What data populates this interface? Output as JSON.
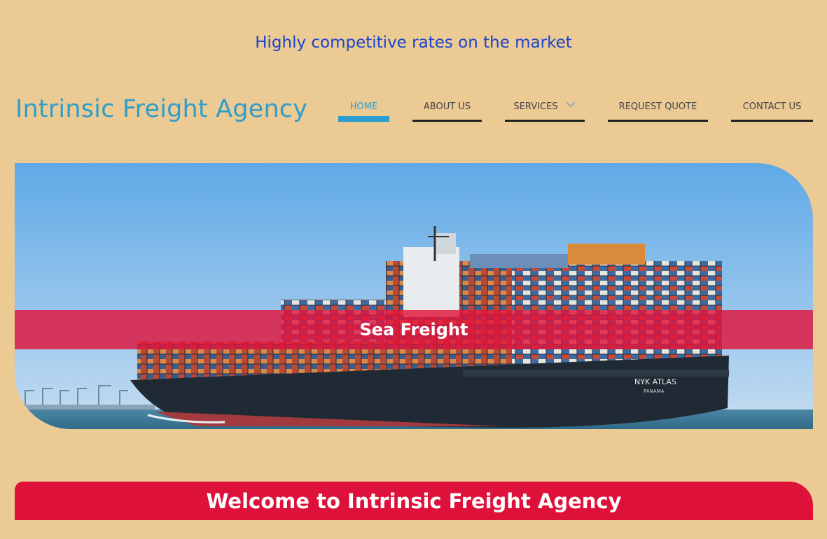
{
  "header": {
    "tagline": "Highly competitive rates on the market",
    "brand": "Intrinsic Freight Agency"
  },
  "nav": {
    "home": "HOME",
    "about": "ABOUT US",
    "services": "SERVICES",
    "quote": "REQUEST QUOTE",
    "contact": "CONTACT US"
  },
  "hero": {
    "caption": "Sea Freight",
    "ship_name": "NYK ATLAS",
    "ship_port": "PANAMA"
  },
  "welcome": {
    "title": "Welcome to Intrinsic Freight Agency"
  },
  "colors": {
    "background": "#ecca94",
    "accent_blue": "#2a9ed3",
    "tagline_blue": "#1a44cc",
    "banner_red": "#dd1139"
  }
}
